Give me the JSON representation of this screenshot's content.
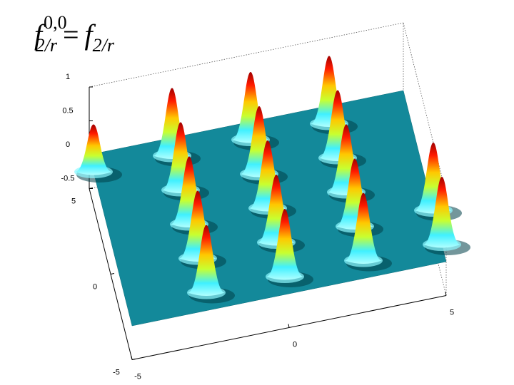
{
  "chart_data": {
    "type": "surface",
    "title": {
      "lhs": "f",
      "lhs_sup": "0,0",
      "lhs_sub": "2/r",
      "op": "=",
      "rhs": "f",
      "rhs_sub": "2/r"
    },
    "x": [
      -5,
      -2.5,
      0,
      2.5,
      -2.5,
      0,
      2.5,
      -2.5,
      0,
      2.5,
      -2.5,
      0,
      2.5,
      5,
      -2.5,
      0,
      2.5,
      5
    ],
    "y": [
      4,
      4,
      4,
      4,
      2,
      2,
      2,
      0,
      0,
      0,
      -2,
      -2,
      -2,
      -2,
      -4,
      -4,
      -4,
      -4
    ],
    "values": [
      0.7,
      1,
      1,
      1,
      1,
      1,
      1,
      1,
      1,
      1,
      1,
      1,
      1,
      1,
      1,
      1,
      1,
      1
    ],
    "xlim": [
      -5,
      5
    ],
    "xticks": [
      -5,
      0,
      5
    ],
    "ylim": [
      -5,
      5
    ],
    "yticks": [
      -5,
      0,
      5
    ],
    "zlim": [
      -0.5,
      1
    ],
    "zticks": [
      -0.5,
      0,
      0.5,
      1
    ],
    "surface_color": "#13899a"
  }
}
